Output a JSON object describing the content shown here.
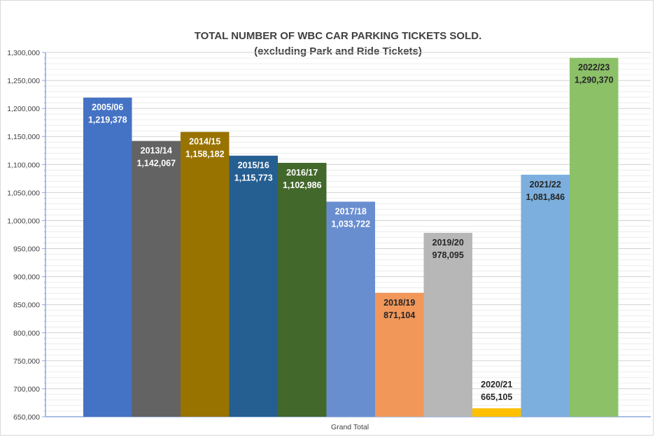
{
  "chart_data": {
    "type": "bar",
    "title": "TOTAL NUMBER OF WBC CAR PARKING TICKETS SOLD.",
    "subtitle": "(excluding Park and Ride Tickets)",
    "category_label": "Grand Total",
    "ylim": [
      650000,
      1300000
    ],
    "y_tick_step": 50000,
    "y_ticks": [
      "650,000",
      "700,000",
      "750,000",
      "800,000",
      "850,000",
      "900,000",
      "950,000",
      "1,000,000",
      "1,050,000",
      "1,100,000",
      "1,150,000",
      "1,200,000",
      "1,250,000",
      "1,300,000"
    ],
    "grid": true,
    "series": [
      {
        "name": "2005/06",
        "value": 1219378,
        "label": "1,219,378",
        "color": "#4472c4",
        "label_color": "#ffffff"
      },
      {
        "name": "2013/14",
        "value": 1142067,
        "label": "1,142,067",
        "color": "#636363",
        "label_color": "#ffffff"
      },
      {
        "name": "2014/15",
        "value": 1158182,
        "label": "1,158,182",
        "color": "#997300",
        "label_color": "#ffffff"
      },
      {
        "name": "2015/16",
        "value": 1115773,
        "label": "1,115,773",
        "color": "#255e91",
        "label_color": "#ffffff"
      },
      {
        "name": "2016/17",
        "value": 1102986,
        "label": "1,102,986",
        "color": "#43682b",
        "label_color": "#ffffff"
      },
      {
        "name": "2017/18",
        "value": 1033722,
        "label": "1,033,722",
        "color": "#698ed0",
        "label_color": "#ffffff"
      },
      {
        "name": "2018/19",
        "value": 871104,
        "label": "871,104",
        "color": "#f1975a",
        "label_color": "#262626"
      },
      {
        "name": "2019/20",
        "value": 978095,
        "label": "978,095",
        "color": "#b7b7b7",
        "label_color": "#262626"
      },
      {
        "name": "2020/21",
        "value": 665105,
        "label": "665,105",
        "color": "#ffc000",
        "label_color": "#262626"
      },
      {
        "name": "2021/22",
        "value": 1081846,
        "label": "1,081,846",
        "color": "#7cafdd",
        "label_color": "#262626"
      },
      {
        "name": "2022/23",
        "value": 1290370,
        "label": "1,290,370",
        "color": "#8cc168",
        "label_color": "#262626"
      }
    ]
  }
}
